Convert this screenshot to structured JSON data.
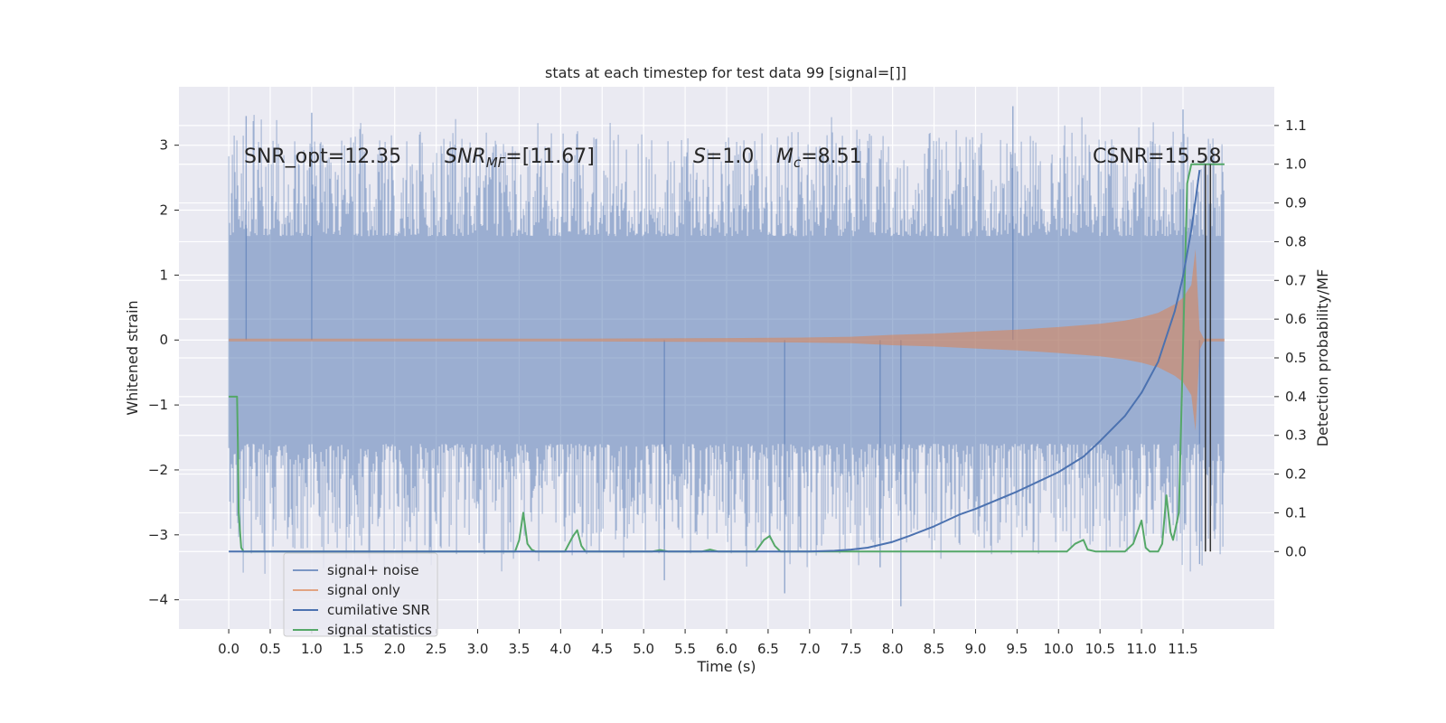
{
  "chart_data": {
    "type": "line",
    "title": "stats at each timestep for test data 99 [signal=[]]",
    "xlabel": "Time (s)",
    "ylabel": "Whitened strain",
    "ylabel_right": "Detection probability/MF",
    "xlim": [
      -0.6,
      12.6
    ],
    "ylim": [
      -4.45,
      3.9
    ],
    "ylim_right": [
      -0.2,
      1.2
    ],
    "x_ticks": [
      0.0,
      0.5,
      1.0,
      1.5,
      2.0,
      2.5,
      3.0,
      3.5,
      4.0,
      4.5,
      5.0,
      5.5,
      6.0,
      6.5,
      7.0,
      7.5,
      8.0,
      8.5,
      9.0,
      9.5,
      10.0,
      10.5,
      11.0,
      11.5
    ],
    "x_tick_labels": [
      "0.0",
      "0.5",
      "1.0",
      "1.5",
      "2.0",
      "2.5",
      "3.0",
      "3.5",
      "4.0",
      "4.5",
      "5.0",
      "5.5",
      "6.0",
      "6.5",
      "7.0",
      "7.5",
      "8.0",
      "8.5",
      "9.0",
      "9.5",
      "10.0",
      "10.5",
      "11.0",
      "11.5"
    ],
    "y_ticks": [
      3,
      2,
      1,
      0,
      -1,
      -2,
      -3,
      -4
    ],
    "y_tick_labels": [
      "3",
      "2",
      "1",
      "0",
      "−1",
      "−2",
      "−3",
      "−4"
    ],
    "y_right_ticks": [
      1.1,
      1.0,
      0.9,
      0.8,
      0.7,
      0.6,
      0.5,
      0.4,
      0.3,
      0.2,
      0.1,
      0.0
    ],
    "y_right_tick_labels": [
      "1.1",
      "1.0",
      "0.9",
      "0.8",
      "0.7",
      "0.6",
      "0.5",
      "0.4",
      "0.3",
      "0.2",
      "0.1",
      "0.0"
    ],
    "grid": true,
    "legend_position": "lower-left",
    "annotations": {
      "snr_opt": "SNR_opt=12.35",
      "snr_mf_main": "SNR",
      "snr_mf_sub": "MF",
      "snr_mf_value": "=[11.67]",
      "s_symbol": "S",
      "s_value": "=1.0",
      "mc_symbol": "M",
      "mc_sub": "c",
      "mc_value": "=8.51",
      "csnr": "CSNR=15.58"
    },
    "series": [
      {
        "name": "signal+ noise",
        "axis": "left",
        "color": "#4c72b0",
        "alpha": 0.5,
        "kind": "noisy-band",
        "x_range": [
          0.0,
          12.0
        ],
        "band_low": [
          -1.6,
          1.6
        ],
        "peak_range": [
          -3.6,
          3.5
        ],
        "notable_spikes": [
          {
            "x": 0.21,
            "y": 3.45
          },
          {
            "x": 1.0,
            "y": 3.5
          },
          {
            "x": 5.25,
            "y": -3.7
          },
          {
            "x": 6.7,
            "y": -3.9
          },
          {
            "x": 7.85,
            "y": -3.5
          },
          {
            "x": 8.1,
            "y": -4.1
          },
          {
            "x": 9.45,
            "y": 3.6
          },
          {
            "x": 11.5,
            "y": 3.55
          },
          {
            "x": 11.7,
            "y": -3.45
          }
        ]
      },
      {
        "name": "signal only",
        "axis": "left",
        "color": "#dd8452",
        "alpha": 0.55,
        "kind": "chirp-envelope",
        "envelope": {
          "t": [
            0.0,
            4.0,
            6.0,
            7.0,
            7.5,
            8.0,
            8.5,
            9.0,
            9.5,
            10.0,
            10.5,
            10.8,
            11.0,
            11.2,
            11.4,
            11.5,
            11.6,
            11.65,
            11.7,
            11.75,
            12.0
          ],
          "amp": [
            0.02,
            0.02,
            0.03,
            0.04,
            0.05,
            0.08,
            0.1,
            0.13,
            0.16,
            0.2,
            0.25,
            0.3,
            0.35,
            0.42,
            0.55,
            0.65,
            0.85,
            1.4,
            0.15,
            0.02,
            0.02
          ]
        }
      },
      {
        "name": "cumilative SNR",
        "axis": "right",
        "color": "#4c72b0",
        "alpha": 1.0,
        "x": [
          0.0,
          6.0,
          6.5,
          7.0,
          7.3,
          7.5,
          7.7,
          7.8,
          8.0,
          8.2,
          8.5,
          8.8,
          9.0,
          9.5,
          10.0,
          10.3,
          10.5,
          10.8,
          11.0,
          11.2,
          11.4,
          11.5,
          11.6,
          11.7
        ],
        "y": [
          0.0,
          0.0,
          0.0,
          0.0,
          0.002,
          0.005,
          0.01,
          0.015,
          0.025,
          0.04,
          0.065,
          0.095,
          0.11,
          0.155,
          0.205,
          0.245,
          0.285,
          0.35,
          0.41,
          0.49,
          0.62,
          0.71,
          0.83,
          0.985
        ]
      },
      {
        "name": "signal statistics",
        "axis": "right",
        "color": "#55a868",
        "alpha": 1.0,
        "x": [
          0.0,
          0.07,
          0.1,
          0.11,
          0.12,
          0.15,
          0.18,
          3.45,
          3.5,
          3.55,
          3.6,
          3.65,
          3.7,
          4.05,
          4.1,
          4.15,
          4.2,
          4.25,
          4.3,
          5.1,
          5.2,
          5.3,
          5.7,
          5.8,
          5.9,
          6.35,
          6.45,
          6.52,
          6.58,
          6.65,
          10.1,
          10.2,
          10.3,
          10.35,
          10.45,
          10.8,
          10.9,
          11.0,
          11.05,
          11.1,
          11.2,
          11.25,
          11.3,
          11.35,
          11.38,
          11.45,
          11.55,
          11.6,
          11.7,
          12.0
        ],
        "y": [
          0.4,
          0.4,
          0.4,
          0.28,
          0.1,
          0.01,
          0.0,
          0.0,
          0.03,
          0.1,
          0.02,
          0.005,
          0.0,
          0.0,
          0.02,
          0.04,
          0.055,
          0.015,
          0.0,
          0.0,
          0.004,
          0.0,
          0.0,
          0.005,
          0.0,
          0.0,
          0.03,
          0.04,
          0.015,
          0.0,
          0.0,
          0.02,
          0.03,
          0.005,
          0.0,
          0.0,
          0.02,
          0.08,
          0.01,
          0.0,
          0.0,
          0.02,
          0.145,
          0.05,
          0.03,
          0.1,
          0.95,
          1.0,
          1.0,
          1.0
        ]
      }
    ],
    "vertical_markers": [
      {
        "x": 11.77,
        "color": "#333333"
      },
      {
        "x": 11.83,
        "color": "#333333"
      }
    ]
  }
}
